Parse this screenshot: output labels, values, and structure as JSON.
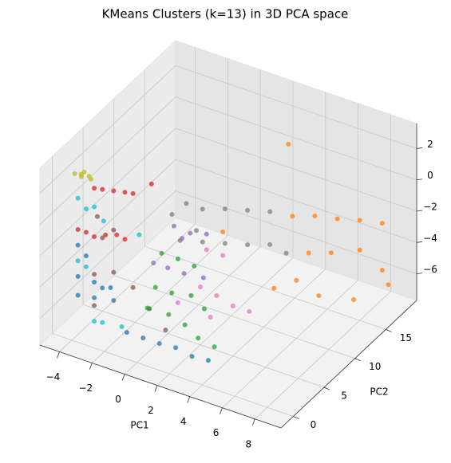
{
  "chart_data": {
    "type": "scatter3d",
    "title": "KMeans Clusters (k=13) in 3D PCA space",
    "xlabel": "PC1",
    "ylabel": "PC2",
    "xlim": [
      -5.2,
      9.6
    ],
    "ylim": [
      -2,
      20
    ],
    "zlim": [
      -7.7,
      3.6
    ],
    "xticks": [
      {
        "value": -4,
        "label": "−4"
      },
      {
        "value": -2,
        "label": "−2"
      },
      0,
      2,
      4,
      6,
      8
    ],
    "yticks": [
      0,
      5,
      10,
      15
    ],
    "zticks": [
      {
        "value": -6,
        "label": "−6"
      },
      {
        "value": -4,
        "label": "−4"
      },
      {
        "value": -2,
        "label": "−2"
      },
      0,
      2
    ],
    "grid": true,
    "series": [
      {
        "color": "#1f77b4",
        "x": [
          -4,
          -3.5,
          -4,
          -3,
          -2.5,
          -2,
          -1,
          0,
          1,
          2,
          3,
          4,
          -4,
          -3,
          -2
        ],
        "y": [
          1,
          1,
          1,
          1,
          1,
          1,
          1,
          1,
          1,
          1,
          1,
          1,
          1,
          1,
          1.5
        ],
        "z": [
          -2,
          -2.5,
          -4,
          -4,
          -4.2,
          -4,
          -6.5,
          -6.5,
          -6.5,
          -6.4,
          -6.6,
          -6.5,
          -5.2,
          -5,
          -5
        ]
      },
      {
        "color": "#8c564b",
        "x": [
          -3,
          -2.5,
          -2,
          -3,
          -2,
          -1,
          -3,
          0,
          1
        ],
        "y": [
          1.5,
          1,
          1.5,
          1,
          1.5,
          2,
          1,
          2,
          2
        ],
        "z": [
          0,
          -1,
          -0.5,
          -3.5,
          -3.2,
          -4,
          -5.5,
          -5,
          -6
        ]
      },
      {
        "color": "#17becf",
        "x": [
          -4,
          -3.5,
          -3,
          -2.5,
          -4,
          -3.5,
          -1,
          -3,
          -2.5,
          -1.5
        ],
        "y": [
          1,
          1,
          1,
          1.2,
          1,
          1,
          3,
          1,
          1,
          1.5
        ],
        "z": [
          1,
          0.5,
          0.8,
          0,
          -3,
          -3.2,
          -1,
          -6.5,
          -6.4,
          -6.5
        ]
      },
      {
        "color": "#d62728",
        "x": [
          -3,
          -2.5,
          -2,
          -1.5,
          -1,
          -3.5,
          -3,
          -2.5,
          -2,
          -1.5,
          -4,
          -1
        ],
        "y": [
          1,
          1,
          1.5,
          2,
          2,
          1,
          1,
          1.5,
          2,
          2,
          1,
          5
        ],
        "z": [
          2,
          2.1,
          2,
          1.9,
          2,
          -1,
          -1.1,
          -1,
          -1,
          -1.1,
          -1,
          1.5
        ]
      },
      {
        "color": "#bcbd22",
        "x": [
          -4.2,
          -3.8,
          -3.5,
          -4,
          -3.2,
          -3.6
        ],
        "y": [
          1,
          1,
          1.5,
          2,
          1,
          0.5
        ],
        "z": [
          2.5,
          2.6,
          2.4,
          2.3,
          2.5,
          2.7
        ]
      },
      {
        "color": "#9467bd",
        "x": [
          0,
          1,
          2,
          0,
          1,
          2,
          -0.5,
          0.5
        ],
        "y": [
          6,
          6,
          6,
          5,
          5,
          5.5,
          4,
          6
        ],
        "z": [
          -1.2,
          -1.3,
          -1,
          -3.5,
          -3.5,
          -3.6,
          -3,
          -1.8
        ]
      },
      {
        "color": "#e377c2",
        "x": [
          2,
          3,
          2,
          3,
          4,
          5,
          1,
          3
        ],
        "y": [
          6,
          6,
          5,
          5,
          5,
          5,
          4,
          4
        ],
        "z": [
          -2,
          -2,
          -4,
          -4.2,
          -4.5,
          -4.5,
          -5,
          -5.2
        ]
      },
      {
        "color": "#7f7f7f",
        "x": [
          0,
          1,
          2,
          3,
          4,
          0,
          1,
          2,
          3,
          4,
          5,
          -0.5,
          1
        ],
        "y": [
          8,
          8,
          9,
          10,
          11,
          7,
          8,
          9,
          10,
          11,
          11,
          7,
          7
        ],
        "z": [
          -0.5,
          -0.5,
          -0.5,
          -0.6,
          -0.7,
          -2.5,
          -2.6,
          -2.7,
          -2.8,
          -2.8,
          -3,
          -1,
          -1.5
        ]
      },
      {
        "color": "#2ca02c",
        "x": [
          0,
          1,
          2,
          0,
          1,
          2,
          3,
          0,
          1,
          2,
          3,
          4,
          -0.5
        ],
        "y": [
          4,
          4,
          4,
          3,
          3,
          3.5,
          3,
          2,
          2.5,
          2.5,
          2,
          2,
          3
        ],
        "z": [
          -2.2,
          -2.2,
          -2.3,
          -4,
          -4,
          -4,
          -4.3,
          -5,
          -5.2,
          -5.5,
          -5.8,
          -6,
          -5.5
        ]
      },
      {
        "color": "#ff7f0e",
        "x": [
          5,
          6,
          7,
          8,
          9,
          6,
          7,
          8,
          9,
          6,
          7,
          8,
          5,
          3,
          9,
          4
        ],
        "y": [
          12,
          13,
          14,
          15,
          16,
          12,
          13,
          15,
          16,
          10,
          11,
          14,
          9,
          6,
          17,
          14
        ],
        "z": [
          -1,
          -1,
          -1.2,
          -1.3,
          -1.5,
          -3,
          -3,
          -3.2,
          -4.5,
          -4,
          -5,
          -6,
          -4.5,
          -0.5,
          -5.8,
          2.5
        ]
      }
    ]
  }
}
